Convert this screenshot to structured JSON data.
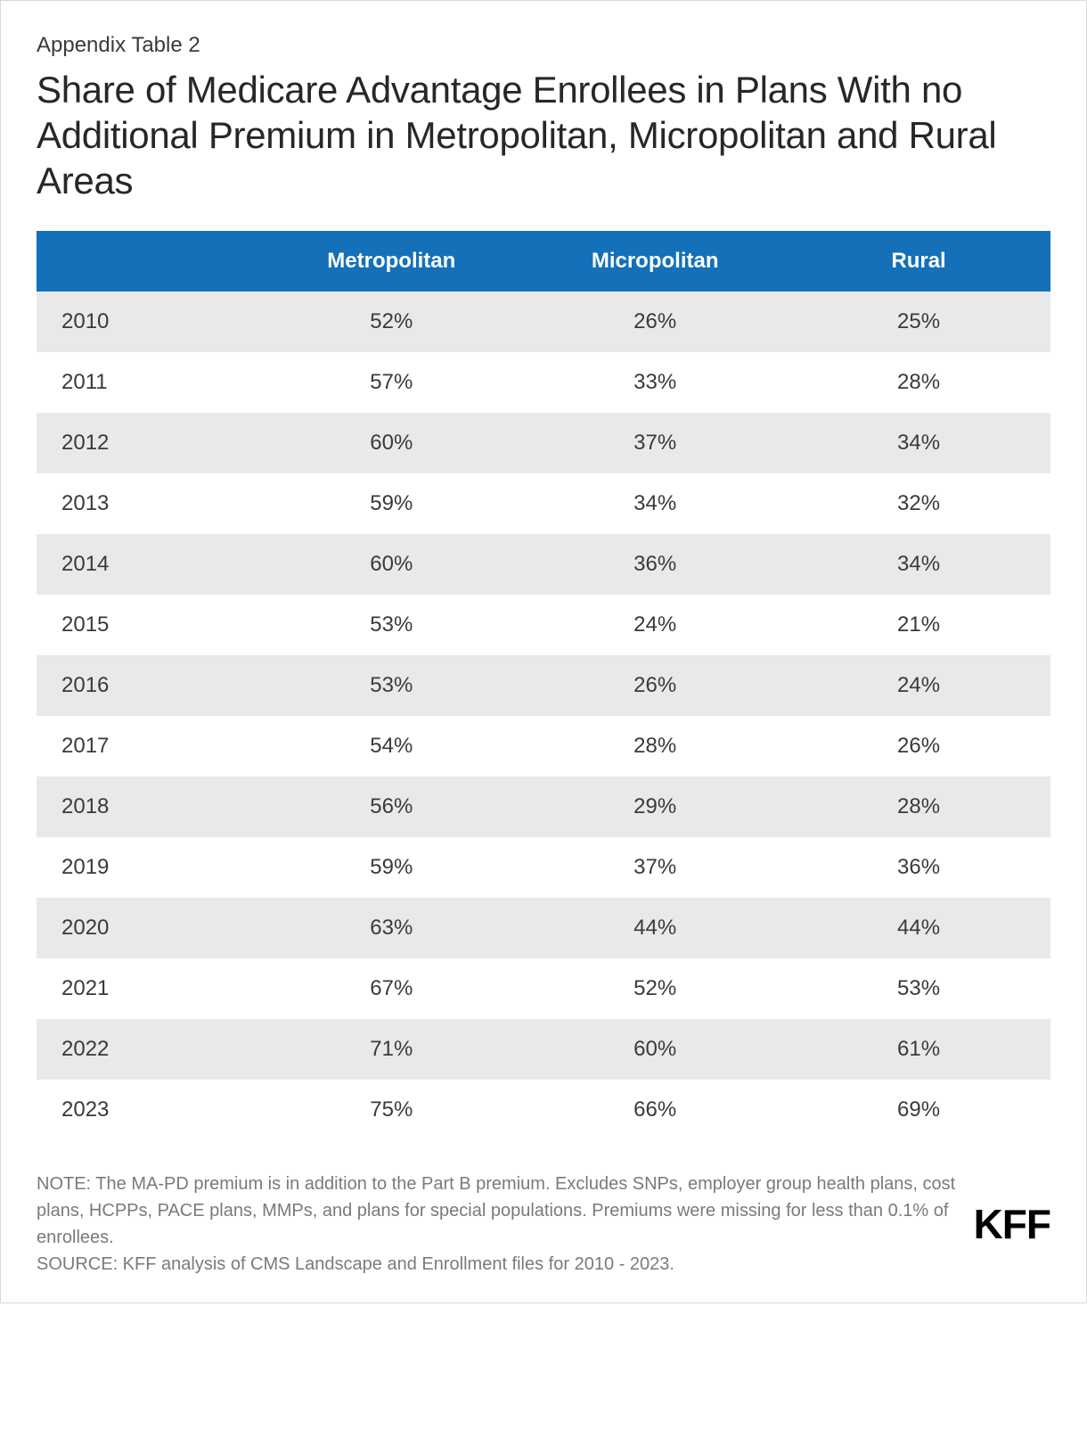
{
  "supertitle": "Appendix Table 2",
  "title": "Share of Medicare Advantage Enrollees in Plans With no Additional Premium in Metropolitan, Micropolitan and Rural Areas",
  "table": {
    "type": "table",
    "header_bg": "#1470b8",
    "header_text_color": "#ffffff",
    "row_odd_bg": "#e9e9e9",
    "row_even_bg": "#ffffff",
    "text_color": "#3a3a3a",
    "header_fontweight": "700",
    "cell_fontsize": 24,
    "columns": [
      "",
      "Metropolitan",
      "Micropolitan",
      "Rural"
    ],
    "rows": [
      [
        "2010",
        "52%",
        "26%",
        "25%"
      ],
      [
        "2011",
        "57%",
        "33%",
        "28%"
      ],
      [
        "2012",
        "60%",
        "37%",
        "34%"
      ],
      [
        "2013",
        "59%",
        "34%",
        "32%"
      ],
      [
        "2014",
        "60%",
        "36%",
        "34%"
      ],
      [
        "2015",
        "53%",
        "24%",
        "21%"
      ],
      [
        "2016",
        "53%",
        "26%",
        "24%"
      ],
      [
        "2017",
        "54%",
        "28%",
        "26%"
      ],
      [
        "2018",
        "56%",
        "29%",
        "28%"
      ],
      [
        "2019",
        "59%",
        "37%",
        "36%"
      ],
      [
        "2020",
        "63%",
        "44%",
        "44%"
      ],
      [
        "2021",
        "67%",
        "52%",
        "53%"
      ],
      [
        "2022",
        "71%",
        "60%",
        "61%"
      ],
      [
        "2023",
        "75%",
        "66%",
        "69%"
      ]
    ]
  },
  "footer": {
    "note": "NOTE: The MA-PD premium is in addition to the Part B premium. Excludes SNPs, employer group health plans, cost plans, HCPPs, PACE plans, MMPs, and plans for special populations. Premiums were missing for less than 0.1% of enrollees.",
    "source": "SOURCE: KFF analysis of CMS Landscape and Enrollment files for 2010 - 2023.",
    "logo": "KFF",
    "text_color": "#7a7a7a",
    "fontsize": 20
  },
  "card_border_color": "#d9d9d9",
  "background_color": "#ffffff"
}
